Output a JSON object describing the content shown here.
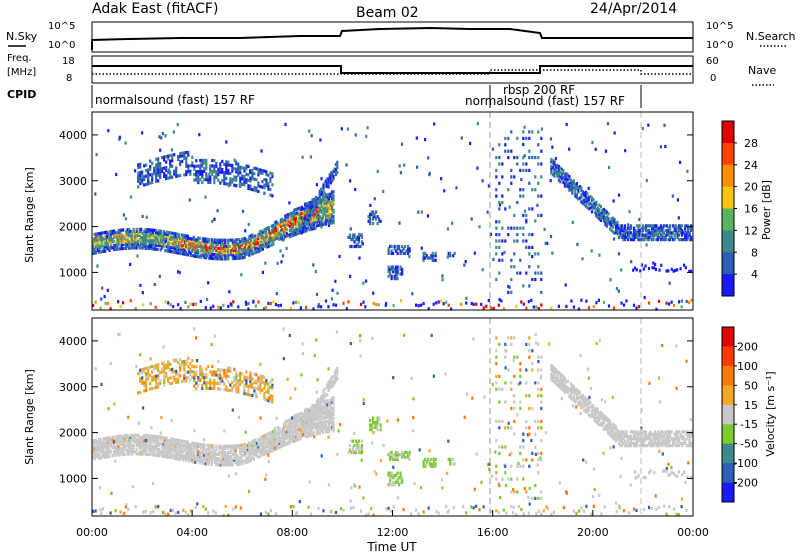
{
  "header": {
    "radar": "Adak East (fitACF)",
    "beam": "Beam 02",
    "date": "24/Apr/2014"
  },
  "strip_panels": {
    "nsky": {
      "label": "N.Sky",
      "ticks": [
        "10^5",
        "10^0"
      ],
      "right_label": "N.Search",
      "right_ticks": [
        "10^5",
        "10^0"
      ]
    },
    "freq": {
      "label_line1": "Freq.",
      "label_line2": "[MHz]",
      "ticks": [
        "18",
        "8"
      ],
      "right_label": "Nave",
      "right_ticks": [
        "60",
        "0"
      ]
    },
    "cpid": {
      "label": "CPID",
      "segments": [
        {
          "name": "normalsound (fast) 157 RF",
          "start_hour": 0
        },
        {
          "name": "rbsp 200 RF",
          "start_hour": 16
        },
        {
          "name": "normalsound (fast) 157 RF",
          "start_hour": 16
        }
      ]
    }
  },
  "chart_data": [
    {
      "type": "heatmap",
      "title": "Power",
      "xlabel": "",
      "ylabel": "Slant Range [km]",
      "xlim": [
        0,
        24
      ],
      "ylim": [
        180,
        4500
      ],
      "y_ticks": [
        "1000",
        "2000",
        "3000",
        "4000"
      ],
      "colorbar": {
        "label": "Power [dB]",
        "ticks": [
          "28",
          "24",
          "20",
          "16",
          "12",
          "8",
          "4"
        ],
        "range": [
          0,
          30
        ],
        "colors": [
          "#1a1aff",
          "#2f5fb5",
          "#3d8a8a",
          "#5cb55c",
          "#f5c518",
          "#ff8c00",
          "#ff4500",
          "#e00000"
        ]
      }
    },
    {
      "type": "heatmap",
      "title": "Velocity",
      "xlabel": "Time UT",
      "ylabel": "Slant Range [km]",
      "xlim": [
        0,
        24
      ],
      "ylim": [
        180,
        4500
      ],
      "x_ticks": [
        "00:00",
        "04:00",
        "08:00",
        "12:00",
        "16:00",
        "20:00",
        "00:00"
      ],
      "y_ticks": [
        "1000",
        "2000",
        "3000",
        "4000"
      ],
      "colorbar": {
        "label": "Velocity [m s⁻¹]",
        "ticks": [
          "200",
          "100",
          "50",
          "15",
          "-15",
          "-50",
          "-100",
          "-200"
        ],
        "colors": [
          "#1a1aff",
          "#2f5fb5",
          "#3d8a8a",
          "#7acc2e",
          "#c8c8c8",
          "#f5a623",
          "#ff7a00",
          "#ff3b00",
          "#e00000"
        ]
      }
    }
  ]
}
